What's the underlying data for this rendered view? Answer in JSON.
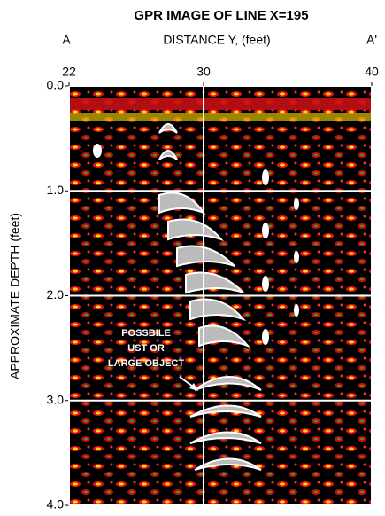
{
  "chart_data": {
    "type": "gpr-image",
    "title": "GPR IMAGE OF LINE X=195",
    "x_label": "DISTANCE Y, (feet)",
    "x_left_label": "A",
    "x_right_label": "A'",
    "y_label": "APPROXIMATE DEPTH (feet)",
    "xlim": [
      22,
      40
    ],
    "xticks": [
      22,
      30,
      40
    ],
    "ylim": [
      0,
      4
    ],
    "yticks": [
      {
        "value": 0,
        "label": "0.0"
      },
      {
        "value": 1,
        "label": "1.0"
      },
      {
        "value": 2,
        "label": "2.0"
      },
      {
        "value": 3,
        "label": "3.0"
      },
      {
        "value": 4,
        "label": "4.0"
      }
    ],
    "y_inverted": true,
    "grid": true,
    "grid_color": "#ffffff",
    "annotation": [
      "POSSBILE",
      "UST OR",
      "LARGE OBJECT"
    ]
  }
}
